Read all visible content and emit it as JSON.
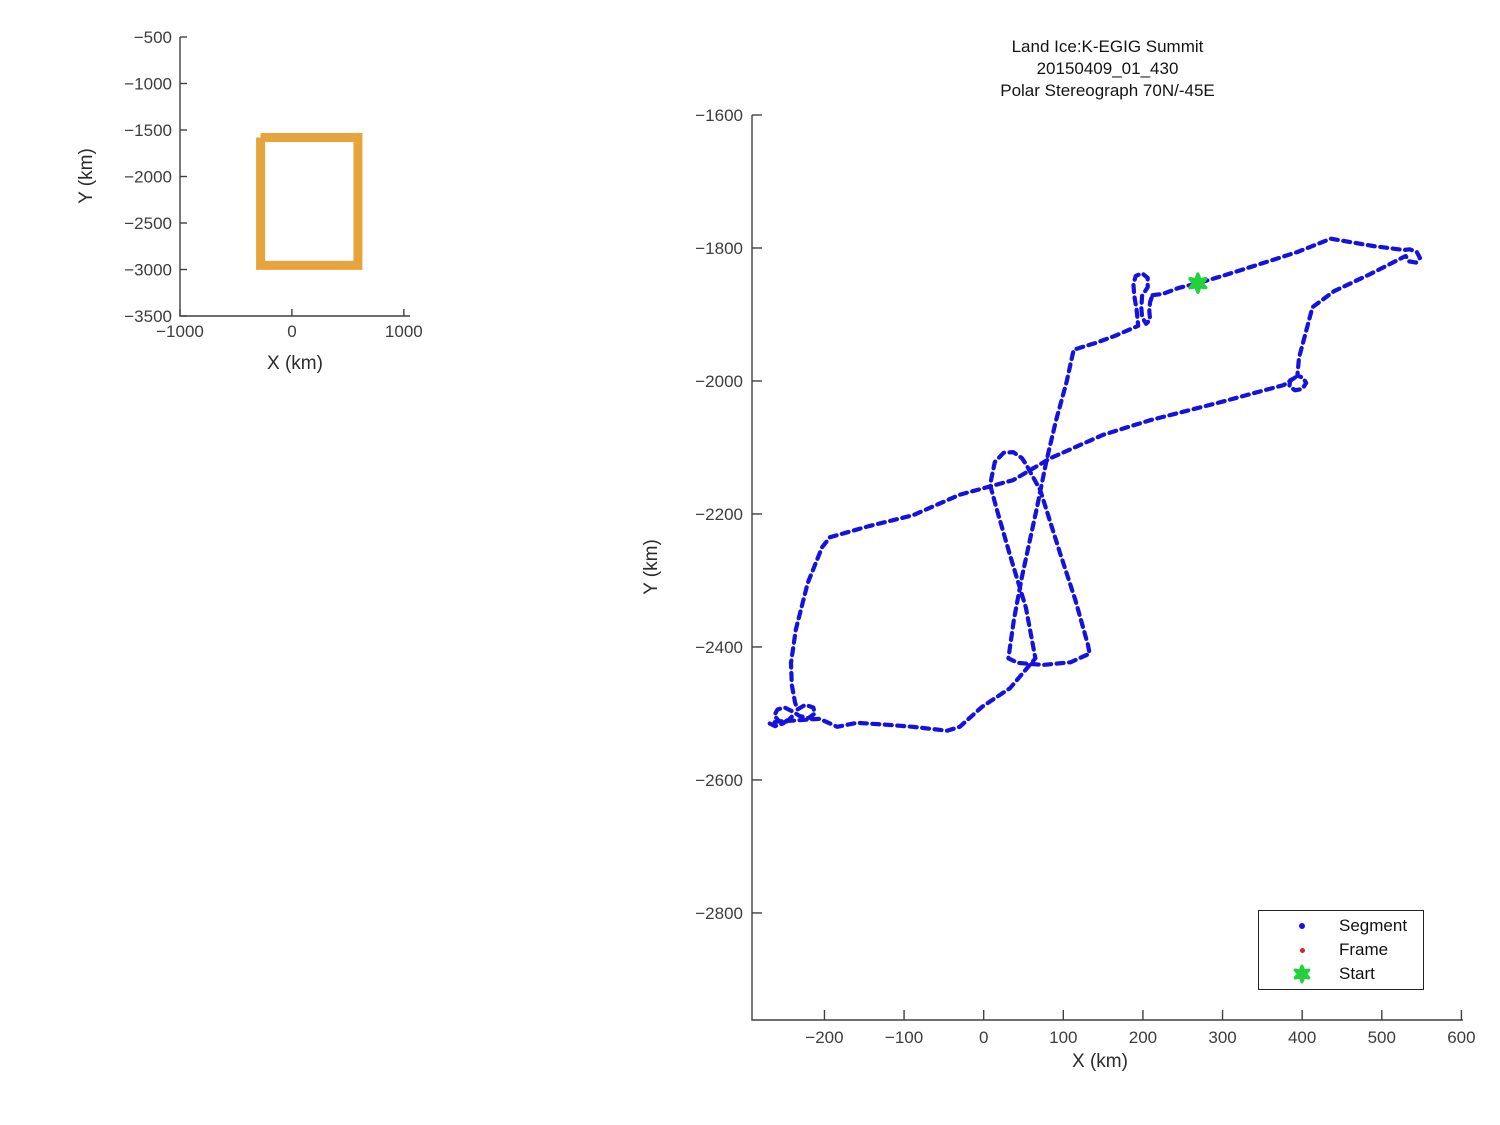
{
  "title": {
    "line1": "Land Ice:K-EGIG Summit",
    "line2": "20150409_01_430",
    "line3": "Polar Stereograph 70N/-45E"
  },
  "colors": {
    "segment_blue": "#1512e0",
    "frame_red": "#dd2222",
    "start_green": "#22d13c",
    "extent_orange": "#e8a43c",
    "axis": "#404040",
    "tick_text": "#3d3d3d"
  },
  "chart_data": [
    {
      "type": "line",
      "name": "overview-extent-map",
      "title": "",
      "xlabel": "X (km)",
      "ylabel": "Y (km)",
      "xlim": [
        -1000,
        1055
      ],
      "ylim": [
        -3500,
        -500
      ],
      "x_ticks": [
        -1000,
        0,
        1000
      ],
      "y_ticks": [
        -500,
        -1000,
        -1500,
        -2000,
        -2500,
        -3000,
        -3500
      ],
      "grid": false,
      "series": [
        {
          "name": "coverage-extent-box",
          "color": "#e8a43c",
          "line_width": 9,
          "points": [
            [
              -280,
              -1580
            ],
            [
              590,
              -1580
            ],
            [
              590,
              -2955
            ],
            [
              -280,
              -2955
            ],
            [
              -280,
              -1580
            ]
          ]
        }
      ]
    },
    {
      "type": "scatter",
      "name": "flight-trajectory",
      "title": "Land Ice:K-EGIG Summit 20150409_01_430 Polar Stereograph 70N/-45E",
      "xlabel": "X (km)",
      "ylabel": "Y (km)",
      "xlim": [
        -291,
        602
      ],
      "ylim": [
        -2961,
        -1600
      ],
      "x_ticks": [
        -200,
        -100,
        0,
        100,
        200,
        300,
        400,
        500,
        600
      ],
      "y_ticks": [
        -1600,
        -1800,
        -2000,
        -2200,
        -2400,
        -2600,
        -2800
      ],
      "grid": false,
      "legend_position": "lower right",
      "series": [
        {
          "name": "Segment",
          "color": "#1512e0",
          "marker": "dot",
          "points": [
            [
              212,
              -1871
            ],
            [
              225,
              -1869
            ],
            [
              245,
              -1860
            ],
            [
              269,
              -1853
            ],
            [
              300,
              -1842
            ],
            [
              363,
              -1818
            ],
            [
              394,
              -1806
            ],
            [
              436,
              -1786
            ],
            [
              489,
              -1797
            ],
            [
              528,
              -1803
            ],
            [
              535,
              -1802
            ],
            [
              544,
              -1806
            ],
            [
              548,
              -1815
            ],
            [
              543,
              -1822
            ],
            [
              534,
              -1820
            ],
            [
              530,
              -1812
            ],
            [
              486,
              -1839
            ],
            [
              440,
              -1865
            ],
            [
              413,
              -1889
            ],
            [
              402,
              -1938
            ],
            [
              396,
              -1965
            ],
            [
              394,
              -1992
            ],
            [
              401,
              -1995
            ],
            [
              405,
              -2003
            ],
            [
              400,
              -2012
            ],
            [
              391,
              -2014
            ],
            [
              384,
              -2008
            ],
            [
              385,
              -1999
            ],
            [
              392,
              -1994
            ],
            [
              377,
              -2006
            ],
            [
              294,
              -2033
            ],
            [
              209,
              -2059
            ],
            [
              150,
              -2081
            ],
            [
              84,
              -2116
            ],
            [
              37,
              -2149
            ],
            [
              -30,
              -2171
            ],
            [
              -89,
              -2202
            ],
            [
              -143,
              -2218
            ],
            [
              -193,
              -2235
            ],
            [
              -203,
              -2250
            ],
            [
              -221,
              -2304
            ],
            [
              -236,
              -2374
            ],
            [
              -242,
              -2424
            ],
            [
              -241,
              -2457
            ],
            [
              -237,
              -2483
            ],
            [
              -234,
              -2494
            ],
            [
              -224,
              -2487
            ],
            [
              -214,
              -2491
            ],
            [
              -212,
              -2500
            ],
            [
              -220,
              -2507
            ],
            [
              -231,
              -2504
            ],
            [
              -240,
              -2497
            ],
            [
              -250,
              -2491
            ],
            [
              -259,
              -2494
            ],
            [
              -263,
              -2503
            ],
            [
              -257,
              -2512
            ],
            [
              -247,
              -2512
            ],
            [
              -241,
              -2505
            ],
            [
              -252,
              -2515
            ],
            [
              -262,
              -2519
            ],
            [
              -269,
              -2515
            ],
            [
              -258,
              -2512
            ],
            [
              -243,
              -2511
            ],
            [
              -206,
              -2508
            ],
            [
              -184,
              -2520
            ],
            [
              -159,
              -2514
            ],
            [
              -121,
              -2517
            ],
            [
              -89,
              -2520
            ],
            [
              -46,
              -2526
            ],
            [
              -30,
              -2520
            ],
            [
              -2,
              -2490
            ],
            [
              33,
              -2462
            ],
            [
              65,
              -2417
            ],
            [
              53,
              -2341
            ],
            [
              33,
              -2262
            ],
            [
              16,
              -2191
            ],
            [
              8,
              -2156
            ],
            [
              14,
              -2122
            ],
            [
              25,
              -2108
            ],
            [
              37,
              -2107
            ],
            [
              48,
              -2116
            ],
            [
              53,
              -2125
            ],
            [
              71,
              -2164
            ],
            [
              96,
              -2259
            ],
            [
              115,
              -2329
            ],
            [
              131,
              -2397
            ],
            [
              133,
              -2410
            ],
            [
              109,
              -2423
            ],
            [
              75,
              -2427
            ],
            [
              43,
              -2424
            ],
            [
              31,
              -2417
            ],
            [
              38,
              -2359
            ],
            [
              48,
              -2295
            ],
            [
              67,
              -2190
            ],
            [
              79,
              -2119
            ],
            [
              91,
              -2059
            ],
            [
              104,
              -2002
            ],
            [
              113,
              -1953
            ],
            [
              140,
              -1943
            ],
            [
              165,
              -1932
            ],
            [
              194,
              -1917
            ],
            [
              192,
              -1893
            ],
            [
              189,
              -1871
            ],
            [
              188,
              -1854
            ],
            [
              191,
              -1842
            ],
            [
              199,
              -1838
            ],
            [
              206,
              -1845
            ],
            [
              206,
              -1859
            ],
            [
              199,
              -1872
            ],
            [
              198,
              -1890
            ],
            [
              199,
              -1904
            ],
            [
              204,
              -1914
            ],
            [
              209,
              -1908
            ],
            [
              208,
              -1895
            ],
            [
              209,
              -1881
            ],
            [
              212,
              -1871
            ]
          ]
        },
        {
          "name": "Frame",
          "color": "#dd2222",
          "marker": "dot",
          "points": []
        }
      ],
      "start": {
        "name": "Start",
        "color": "#22d13c",
        "marker": "hexagram",
        "point": [
          269,
          -1853
        ]
      }
    }
  ]
}
